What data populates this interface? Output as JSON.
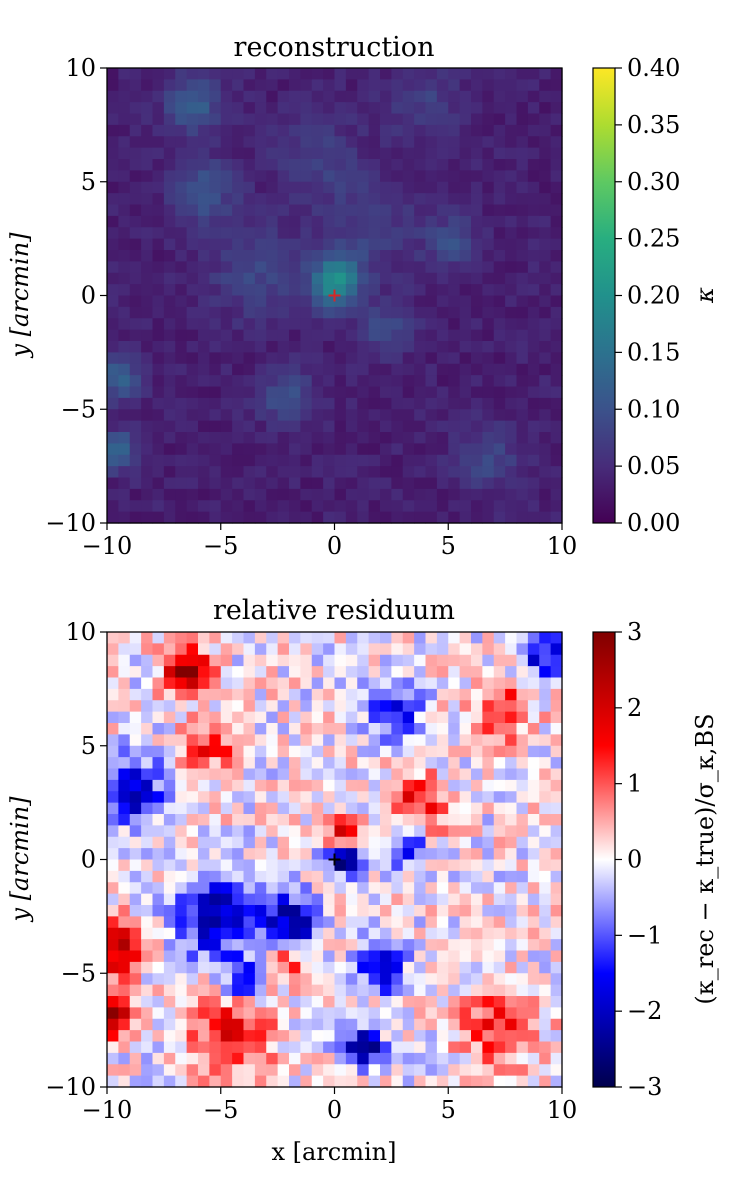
{
  "chart_data": [
    {
      "type": "heatmap",
      "title": "reconstruction",
      "xlabel": "",
      "ylabel": "y [arcmin]",
      "xlim": [
        -10,
        10
      ],
      "ylim": [
        -10,
        10
      ],
      "xticks": [
        -10,
        -5,
        0,
        5,
        10
      ],
      "yticks": [
        -10,
        -5,
        0,
        5,
        10
      ],
      "xtick_labels": [
        "−10",
        "−5",
        "0",
        "5",
        "10"
      ],
      "ytick_labels": [
        "−10",
        "−5",
        "0",
        "5",
        "10"
      ],
      "colorbar": {
        "label": "κ",
        "colormap": "viridis",
        "range": [
          0.0,
          0.4
        ],
        "ticks": [
          0.0,
          0.05,
          0.1,
          0.15,
          0.2,
          0.25,
          0.3,
          0.35,
          0.4
        ],
        "tick_labels": [
          "0.00",
          "0.05",
          "0.10",
          "0.15",
          "0.20",
          "0.25",
          "0.30",
          "0.35",
          "0.40"
        ]
      },
      "background_value": 0.035,
      "features": [
        {
          "x": 0.0,
          "y": 0.4,
          "amp": 0.13,
          "sigma": 0.8
        },
        {
          "x": 0.3,
          "y": 1.2,
          "amp": 0.05,
          "sigma": 0.6
        },
        {
          "x": -6.2,
          "y": 8.4,
          "amp": 0.08,
          "sigma": 0.9
        },
        {
          "x": -5.8,
          "y": 4.6,
          "amp": 0.07,
          "sigma": 1.0
        },
        {
          "x": -9.5,
          "y": -3.6,
          "amp": 0.09,
          "sigma": 0.7
        },
        {
          "x": -9.6,
          "y": -6.8,
          "amp": 0.1,
          "sigma": 0.6
        },
        {
          "x": 2.3,
          "y": -1.5,
          "amp": 0.06,
          "sigma": 0.8
        },
        {
          "x": 5.2,
          "y": 2.3,
          "amp": 0.06,
          "sigma": 0.8
        },
        {
          "x": -2.1,
          "y": -4.5,
          "amp": 0.07,
          "sigma": 0.8
        },
        {
          "x": 6.7,
          "y": -7.2,
          "amp": 0.05,
          "sigma": 1.0
        },
        {
          "x": -3.5,
          "y": 1.0,
          "amp": 0.05,
          "sigma": 1.4
        },
        {
          "x": 1.5,
          "y": 3.0,
          "amp": 0.04,
          "sigma": 1.6
        },
        {
          "x": 4.0,
          "y": 8.5,
          "amp": 0.04,
          "sigma": 1.2
        },
        {
          "x": -0.8,
          "y": 6.2,
          "amp": 0.04,
          "sigma": 1.3
        }
      ],
      "center_marker": {
        "x": 0.0,
        "y": 0.0,
        "symbol": "+",
        "color": "#d62728"
      }
    },
    {
      "type": "heatmap",
      "title": "relative residuum",
      "xlabel": "x [arcmin]",
      "ylabel": "y [arcmin]",
      "xlim": [
        -10,
        10
      ],
      "ylim": [
        -10,
        10
      ],
      "xticks": [
        -10,
        -5,
        0,
        5,
        10
      ],
      "yticks": [
        -10,
        -5,
        0,
        5,
        10
      ],
      "xtick_labels": [
        "−10",
        "−5",
        "0",
        "5",
        "10"
      ],
      "ytick_labels": [
        "−10",
        "−5",
        "0",
        "5",
        "10"
      ],
      "colorbar": {
        "label": "(κ_rec − κ_true)/σ_κ,BS",
        "colormap": "seismic",
        "range": [
          -3,
          3
        ],
        "ticks": [
          -3,
          -2,
          -1,
          0,
          1,
          2,
          3
        ],
        "tick_labels": [
          "−3",
          "−2",
          "−1",
          "0",
          "1",
          "2",
          "3"
        ]
      },
      "background_value": 0.0,
      "features": [
        {
          "x": -6.5,
          "y": 8.3,
          "amp": 2.8,
          "sigma": 0.7
        },
        {
          "x": -9.6,
          "y": -3.8,
          "amp": 2.6,
          "sigma": 0.8
        },
        {
          "x": -9.7,
          "y": -6.8,
          "amp": 2.4,
          "sigma": 0.7
        },
        {
          "x": -4.5,
          "y": -7.8,
          "amp": 1.8,
          "sigma": 1.2
        },
        {
          "x": 7.2,
          "y": -7.3,
          "amp": 1.5,
          "sigma": 1.2
        },
        {
          "x": 3.5,
          "y": 2.3,
          "amp": 1.6,
          "sigma": 1.0
        },
        {
          "x": 0.3,
          "y": 1.1,
          "amp": 2.0,
          "sigma": 0.5
        },
        {
          "x": -5.5,
          "y": 5.0,
          "amp": 1.4,
          "sigma": 0.8
        },
        {
          "x": 7.4,
          "y": 6.5,
          "amp": 1.5,
          "sigma": 0.9
        },
        {
          "x": -2.3,
          "y": -4.4,
          "amp": 1.6,
          "sigma": 0.7
        },
        {
          "x": 0.4,
          "y": 0.1,
          "amp": -3.0,
          "sigma": 0.5
        },
        {
          "x": -9.0,
          "y": 3.0,
          "amp": -2.2,
          "sigma": 1.0
        },
        {
          "x": -5.2,
          "y": -2.5,
          "amp": -2.2,
          "sigma": 1.2
        },
        {
          "x": -2.0,
          "y": -2.8,
          "amp": -2.3,
          "sigma": 0.9
        },
        {
          "x": 1.3,
          "y": -8.3,
          "amp": -2.5,
          "sigma": 0.6
        },
        {
          "x": 2.5,
          "y": 6.6,
          "amp": -1.8,
          "sigma": 0.8
        },
        {
          "x": 3.2,
          "y": 0.6,
          "amp": -1.7,
          "sigma": 0.7
        },
        {
          "x": 2.1,
          "y": -4.8,
          "amp": -1.9,
          "sigma": 0.7
        },
        {
          "x": 9.2,
          "y": 9.0,
          "amp": -1.8,
          "sigma": 0.7
        },
        {
          "x": -3.9,
          "y": -5.3,
          "amp": -2.0,
          "sigma": 0.6
        }
      ],
      "center_marker": {
        "x": 0.0,
        "y": 0.0,
        "symbol": "+",
        "color": "#000000"
      }
    }
  ]
}
